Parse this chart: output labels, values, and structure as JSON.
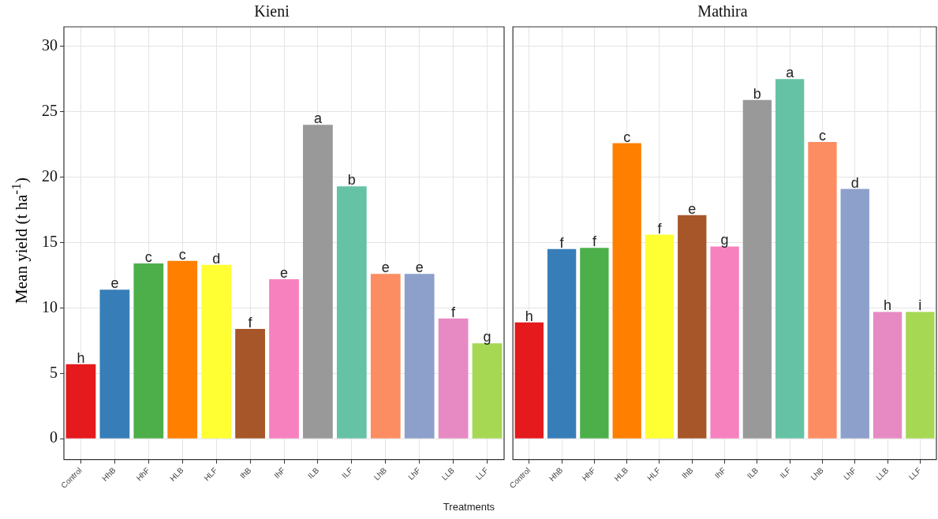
{
  "chart_data": [
    {
      "type": "bar",
      "title": "Kieni",
      "ylabel": "Mean yield (t ha$^{-1}$)",
      "xlabel": "Treatments",
      "categories": [
        "Control",
        "HhB",
        "HhF",
        "HLB",
        "HLF",
        "IhB",
        "IhF",
        "ILB",
        "ILF",
        "LhB",
        "LhF",
        "LLB",
        "LLF"
      ],
      "values": [
        5.7,
        11.4,
        13.4,
        13.6,
        13.3,
        8.4,
        12.2,
        24.0,
        19.3,
        12.6,
        12.6,
        9.2,
        7.3
      ],
      "colors": [
        "#e41a1c",
        "#377eb8",
        "#4daf4a",
        "#ff7f00",
        "#ffff33",
        "#a65628",
        "#f781bf",
        "#999999",
        "#66c2a5",
        "#fc8d62",
        "#8da0cb",
        "#e78ac3",
        "#a6d854"
      ],
      "ylim": [
        -1.6,
        31.5
      ],
      "yticks": [
        0,
        5,
        10,
        15,
        20,
        25,
        30
      ],
      "grid": true,
      "annotations": [
        {
          "text": "h",
          "x": "Control",
          "y": 5.7
        },
        {
          "text": "e",
          "x": "HhB",
          "y": 11.4
        },
        {
          "text": "c",
          "x": "HhF",
          "y": 13.4
        },
        {
          "text": "c",
          "x": "HLB",
          "y": 13.6
        },
        {
          "text": "d",
          "x": "HLF",
          "y": 13.3
        },
        {
          "text": "f",
          "x": "IhB",
          "y": 8.4
        },
        {
          "text": "e",
          "x": "IhF",
          "y": 12.2
        },
        {
          "text": "a",
          "x": "ILB",
          "y": 24.0
        },
        {
          "text": "b",
          "x": "ILF",
          "y": 19.3
        },
        {
          "text": "e",
          "x": "LhB",
          "y": 12.6
        },
        {
          "text": "e",
          "x": "LhF",
          "y": 12.6
        },
        {
          "text": "f",
          "x": "LLB",
          "y": 9.2
        },
        {
          "text": "g",
          "x": "LLF",
          "y": 7.3
        }
      ]
    },
    {
      "type": "bar",
      "title": "Mathira",
      "categories": [
        "Control",
        "HhB",
        "HhF",
        "HLB",
        "HLF",
        "IhB",
        "IhF",
        "ILB",
        "ILF",
        "LhB",
        "LhF",
        "LLB",
        "LLF"
      ],
      "values": [
        8.9,
        14.5,
        14.6,
        22.6,
        15.6,
        17.1,
        14.7,
        25.9,
        27.5,
        22.7,
        19.1,
        9.7,
        9.7
      ],
      "colors": [
        "#e41a1c",
        "#377eb8",
        "#4daf4a",
        "#ff7f00",
        "#ffff33",
        "#a65628",
        "#f781bf",
        "#999999",
        "#66c2a5",
        "#fc8d62",
        "#8da0cb",
        "#e78ac3",
        "#a6d854"
      ],
      "ylim": [
        -1.6,
        31.5
      ],
      "yticks": [
        0,
        5,
        10,
        15,
        20,
        25,
        30
      ],
      "grid": true,
      "tick_labels": "x",
      "annotations": [
        {
          "text": "h",
          "x": "Control",
          "y": 8.9
        },
        {
          "text": "f",
          "x": "HhB",
          "y": 14.5
        },
        {
          "text": "f",
          "x": "HhF",
          "y": 14.6
        },
        {
          "text": "c",
          "x": "HLB",
          "y": 22.6
        },
        {
          "text": "f",
          "x": "HLF",
          "y": 15.6
        },
        {
          "text": "e",
          "x": "IhB",
          "y": 17.1
        },
        {
          "text": "g",
          "x": "IhF",
          "y": 14.7
        },
        {
          "text": "b",
          "x": "ILB",
          "y": 25.9
        },
        {
          "text": "a",
          "x": "ILF",
          "y": 27.5
        },
        {
          "text": "c",
          "x": "LhB",
          "y": 22.7
        },
        {
          "text": "d",
          "x": "LhF",
          "y": 19.1
        },
        {
          "text": "h",
          "x": "LLB",
          "y": 9.7
        },
        {
          "text": "i",
          "x": "LLF",
          "y": 9.7
        }
      ]
    }
  ]
}
